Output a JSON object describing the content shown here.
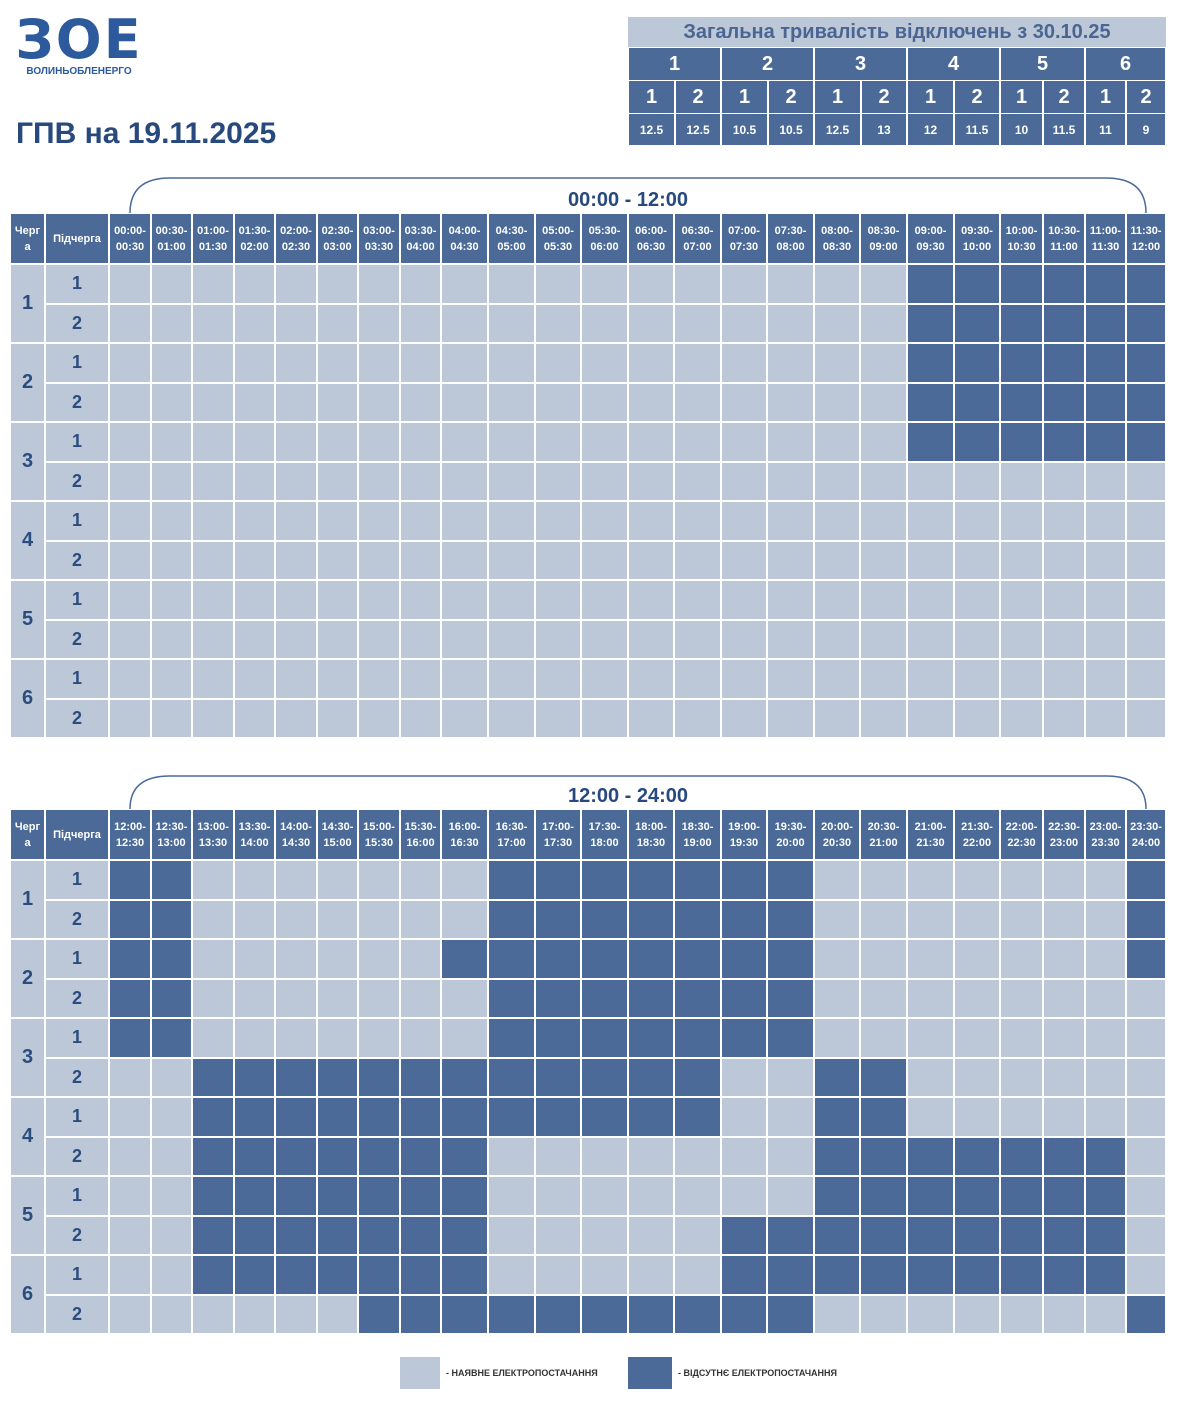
{
  "logo": {
    "mark": "ЗОЕ",
    "name": "ВОЛИНЬОБЛЕНЕРГО"
  },
  "title": "ГПВ на 19.11.2025",
  "summary": {
    "title": "Загальна тривалість відключень з 30.10.25",
    "queues": [
      {
        "queue": 1,
        "subs": [
          1,
          2
        ],
        "hours": [
          12.5,
          12.5
        ]
      },
      {
        "queue": 2,
        "subs": [
          1,
          2
        ],
        "hours": [
          10.5,
          10.5
        ]
      },
      {
        "queue": 3,
        "subs": [
          1,
          2
        ],
        "hours": [
          12.5,
          13
        ]
      },
      {
        "queue": 4,
        "subs": [
          1,
          2
        ],
        "hours": [
          12,
          11.5
        ]
      },
      {
        "queue": 5,
        "subs": [
          1,
          2
        ],
        "hours": [
          10,
          11.5
        ]
      },
      {
        "queue": 6,
        "subs": [
          1,
          2
        ],
        "hours": [
          11,
          9
        ]
      }
    ]
  },
  "tables": [
    {
      "range": "00:00 - 12:00",
      "head_queue": "Черга",
      "head_sub": "Підчерга",
      "slots": [
        [
          "00:00-",
          "00:30"
        ],
        [
          "00:30-",
          "01:00"
        ],
        [
          "01:00-",
          "01:30"
        ],
        [
          "01:30-",
          "02:00"
        ],
        [
          "02:00-",
          "02:30"
        ],
        [
          "02:30-",
          "03:00"
        ],
        [
          "03:00-",
          "03:30"
        ],
        [
          "03:30-",
          "04:00"
        ],
        [
          "04:00-",
          "04:30"
        ],
        [
          "04:30-",
          "05:00"
        ],
        [
          "05:00-",
          "05:30"
        ],
        [
          "05:30-",
          "06:00"
        ],
        [
          "06:00-",
          "06:30"
        ],
        [
          "06:30-",
          "07:00"
        ],
        [
          "07:00-",
          "07:30"
        ],
        [
          "07:30-",
          "08:00"
        ],
        [
          "08:00-",
          "08:30"
        ],
        [
          "08:30-",
          "09:00"
        ],
        [
          "09:00-",
          "09:30"
        ],
        [
          "09:30-",
          "10:00"
        ],
        [
          "10:00-",
          "10:30"
        ],
        [
          "10:30-",
          "11:00"
        ],
        [
          "11:00-",
          "11:30"
        ],
        [
          "11:30-",
          "12:00"
        ]
      ],
      "rows": [
        {
          "queue": 1,
          "subs": [
            1,
            2
          ],
          "off": [
            [
              0,
              0,
              0,
              0,
              0,
              0,
              0,
              0,
              0,
              0,
              0,
              0,
              0,
              0,
              0,
              0,
              0,
              0,
              1,
              1,
              1,
              1,
              1,
              1
            ],
            [
              0,
              0,
              0,
              0,
              0,
              0,
              0,
              0,
              0,
              0,
              0,
              0,
              0,
              0,
              0,
              0,
              0,
              0,
              1,
              1,
              1,
              1,
              1,
              1
            ]
          ]
        },
        {
          "queue": 2,
          "subs": [
            1,
            2
          ],
          "off": [
            [
              0,
              0,
              0,
              0,
              0,
              0,
              0,
              0,
              0,
              0,
              0,
              0,
              0,
              0,
              0,
              0,
              0,
              0,
              1,
              1,
              1,
              1,
              1,
              1
            ],
            [
              0,
              0,
              0,
              0,
              0,
              0,
              0,
              0,
              0,
              0,
              0,
              0,
              0,
              0,
              0,
              0,
              0,
              0,
              1,
              1,
              1,
              1,
              1,
              1
            ]
          ]
        },
        {
          "queue": 3,
          "subs": [
            1,
            2
          ],
          "off": [
            [
              0,
              0,
              0,
              0,
              0,
              0,
              0,
              0,
              0,
              0,
              0,
              0,
              0,
              0,
              0,
              0,
              0,
              0,
              1,
              1,
              1,
              1,
              1,
              1
            ],
            [
              0,
              0,
              0,
              0,
              0,
              0,
              0,
              0,
              0,
              0,
              0,
              0,
              0,
              0,
              0,
              0,
              0,
              0,
              0,
              0,
              0,
              0,
              0,
              0
            ]
          ]
        },
        {
          "queue": 4,
          "subs": [
            1,
            2
          ],
          "off": [
            [
              0,
              0,
              0,
              0,
              0,
              0,
              0,
              0,
              0,
              0,
              0,
              0,
              0,
              0,
              0,
              0,
              0,
              0,
              0,
              0,
              0,
              0,
              0,
              0
            ],
            [
              0,
              0,
              0,
              0,
              0,
              0,
              0,
              0,
              0,
              0,
              0,
              0,
              0,
              0,
              0,
              0,
              0,
              0,
              0,
              0,
              0,
              0,
              0,
              0
            ]
          ]
        },
        {
          "queue": 5,
          "subs": [
            1,
            2
          ],
          "off": [
            [
              0,
              0,
              0,
              0,
              0,
              0,
              0,
              0,
              0,
              0,
              0,
              0,
              0,
              0,
              0,
              0,
              0,
              0,
              0,
              0,
              0,
              0,
              0,
              0
            ],
            [
              0,
              0,
              0,
              0,
              0,
              0,
              0,
              0,
              0,
              0,
              0,
              0,
              0,
              0,
              0,
              0,
              0,
              0,
              0,
              0,
              0,
              0,
              0,
              0
            ]
          ]
        },
        {
          "queue": 6,
          "subs": [
            1,
            2
          ],
          "off": [
            [
              0,
              0,
              0,
              0,
              0,
              0,
              0,
              0,
              0,
              0,
              0,
              0,
              0,
              0,
              0,
              0,
              0,
              0,
              0,
              0,
              0,
              0,
              0,
              0
            ],
            [
              0,
              0,
              0,
              0,
              0,
              0,
              0,
              0,
              0,
              0,
              0,
              0,
              0,
              0,
              0,
              0,
              0,
              0,
              0,
              0,
              0,
              0,
              0,
              0
            ]
          ]
        }
      ]
    },
    {
      "range": "12:00 - 24:00",
      "head_queue": "Черга",
      "head_sub": "Підчерга",
      "slots": [
        [
          "12:00-",
          "12:30"
        ],
        [
          "12:30-",
          "13:00"
        ],
        [
          "13:00-",
          "13:30"
        ],
        [
          "13:30-",
          "14:00"
        ],
        [
          "14:00-",
          "14:30"
        ],
        [
          "14:30-",
          "15:00"
        ],
        [
          "15:00-",
          "15:30"
        ],
        [
          "15:30-",
          "16:00"
        ],
        [
          "16:00-",
          "16:30"
        ],
        [
          "16:30-",
          "17:00"
        ],
        [
          "17:00-",
          "17:30"
        ],
        [
          "17:30-",
          "18:00"
        ],
        [
          "18:00-",
          "18:30"
        ],
        [
          "18:30-",
          "19:00"
        ],
        [
          "19:00-",
          "19:30"
        ],
        [
          "19:30-",
          "20:00"
        ],
        [
          "20:00-",
          "20:30"
        ],
        [
          "20:30-",
          "21:00"
        ],
        [
          "21:00-",
          "21:30"
        ],
        [
          "21:30-",
          "22:00"
        ],
        [
          "22:00-",
          "22:30"
        ],
        [
          "22:30-",
          "23:00"
        ],
        [
          "23:00-",
          "23:30"
        ],
        [
          "23:30-",
          "24:00"
        ]
      ],
      "rows": [
        {
          "queue": 1,
          "subs": [
            1,
            2
          ],
          "off": [
            [
              1,
              1,
              0,
              0,
              0,
              0,
              0,
              0,
              0,
              1,
              1,
              1,
              1,
              1,
              1,
              1,
              0,
              0,
              0,
              0,
              0,
              0,
              0,
              1
            ],
            [
              1,
              1,
              0,
              0,
              0,
              0,
              0,
              0,
              0,
              1,
              1,
              1,
              1,
              1,
              1,
              1,
              0,
              0,
              0,
              0,
              0,
              0,
              0,
              1
            ]
          ]
        },
        {
          "queue": 2,
          "subs": [
            1,
            2
          ],
          "off": [
            [
              1,
              1,
              0,
              0,
              0,
              0,
              0,
              0,
              1,
              1,
              1,
              1,
              1,
              1,
              1,
              1,
              0,
              0,
              0,
              0,
              0,
              0,
              0,
              1
            ],
            [
              1,
              1,
              0,
              0,
              0,
              0,
              0,
              0,
              0,
              1,
              1,
              1,
              1,
              1,
              1,
              1,
              0,
              0,
              0,
              0,
              0,
              0,
              0,
              0
            ]
          ]
        },
        {
          "queue": 3,
          "subs": [
            1,
            2
          ],
          "off": [
            [
              1,
              1,
              0,
              0,
              0,
              0,
              0,
              0,
              0,
              1,
              1,
              1,
              1,
              1,
              1,
              1,
              0,
              0,
              0,
              0,
              0,
              0,
              0,
              0
            ],
            [
              0,
              0,
              1,
              1,
              1,
              1,
              1,
              1,
              1,
              1,
              1,
              1,
              1,
              1,
              0,
              0,
              1,
              1,
              0,
              0,
              0,
              0,
              0,
              0
            ]
          ]
        },
        {
          "queue": 4,
          "subs": [
            1,
            2
          ],
          "off": [
            [
              0,
              0,
              1,
              1,
              1,
              1,
              1,
              1,
              1,
              1,
              1,
              1,
              1,
              1,
              0,
              0,
              1,
              1,
              0,
              0,
              0,
              0,
              0,
              0
            ],
            [
              0,
              0,
              1,
              1,
              1,
              1,
              1,
              1,
              1,
              0,
              0,
              0,
              0,
              0,
              0,
              0,
              1,
              1,
              1,
              1,
              1,
              1,
              1,
              0
            ]
          ]
        },
        {
          "queue": 5,
          "subs": [
            1,
            2
          ],
          "off": [
            [
              0,
              0,
              1,
              1,
              1,
              1,
              1,
              1,
              1,
              0,
              0,
              0,
              0,
              0,
              0,
              0,
              1,
              1,
              1,
              1,
              1,
              1,
              1,
              0
            ],
            [
              0,
              0,
              1,
              1,
              1,
              1,
              1,
              1,
              1,
              0,
              0,
              0,
              0,
              0,
              1,
              1,
              1,
              1,
              1,
              1,
              1,
              1,
              1,
              0
            ]
          ]
        },
        {
          "queue": 6,
          "subs": [
            1,
            2
          ],
          "off": [
            [
              0,
              0,
              1,
              1,
              1,
              1,
              1,
              1,
              1,
              0,
              0,
              0,
              0,
              0,
              1,
              1,
              1,
              1,
              1,
              1,
              1,
              1,
              1,
              0
            ],
            [
              0,
              0,
              0,
              0,
              0,
              0,
              1,
              1,
              1,
              1,
              1,
              1,
              1,
              1,
              1,
              1,
              0,
              0,
              0,
              0,
              0,
              0,
              0,
              1
            ]
          ]
        }
      ]
    }
  ],
  "legend": {
    "on": "- НАЯВНЕ ЕЛЕКТРОПОСТАЧАННЯ",
    "off": "- ВІДСУТНЄ ЕЛЕКТРОПОСТАЧАННЯ"
  }
}
